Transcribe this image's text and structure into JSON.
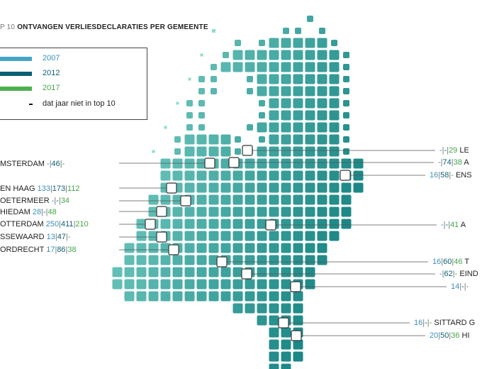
{
  "title": {
    "prefix": "P 10",
    "main": "ONTVANGEN VERLIESDECLARATIES PER GEMEENTE"
  },
  "legend": {
    "items": [
      {
        "label": "2007",
        "color": "#46a3c8"
      },
      {
        "label": "2012",
        "color": "#0b5e74"
      },
      {
        "label": "2017",
        "color": "#4cb052"
      }
    ],
    "not_in_top10": "dat jaar niet in top 10"
  },
  "colors": {
    "year_2007": "#3b8fbd",
    "year_2012": "#0e5f73",
    "year_2017": "#47a64a",
    "map_light": "#7fd6cc",
    "map_dark": "#077a78"
  },
  "chart_data": {
    "type": "table",
    "columns": [
      "2007",
      "2012",
      "2017"
    ],
    "rows": [
      {
        "name": "MSTERDAM",
        "v2007": "-",
        "v2012": "46",
        "v2017": "-",
        "side": "left"
      },
      {
        "name": "EN HAAG",
        "v2007": "133",
        "v2012": "173",
        "v2017": "112",
        "side": "left"
      },
      {
        "name": "OETERMEER",
        "v2007": "-",
        "v2012": "-",
        "v2017": "34",
        "side": "left"
      },
      {
        "name": "HIEDAM",
        "v2007": "28",
        "v2012": "-",
        "v2017": "48",
        "side": "left"
      },
      {
        "name": "OTTERDAM",
        "v2007": "250",
        "v2012": "411",
        "v2017": "210",
        "side": "left"
      },
      {
        "name": "SSEWAARD",
        "v2007": "13",
        "v2012": "47",
        "v2017": "-",
        "side": "left"
      },
      {
        "name": "ORDRECHT",
        "v2007": "17",
        "v2012": "86",
        "v2017": "38",
        "side": "left"
      },
      {
        "name": "LE",
        "v2007": "-",
        "v2012": "-",
        "v2017": "29",
        "side": "right"
      },
      {
        "name": "A",
        "v2007": "-",
        "v2012": "74",
        "v2017": "38",
        "side": "right"
      },
      {
        "name": "ENS",
        "v2007": "16",
        "v2012": "58",
        "v2017": "-",
        "side": "right"
      },
      {
        "name": "A",
        "v2007": "-",
        "v2012": "-",
        "v2017": "41",
        "side": "right"
      },
      {
        "name": "T",
        "v2007": "16",
        "v2012": "60",
        "v2017": "46",
        "side": "right"
      },
      {
        "name": "EIND",
        "v2007": "-",
        "v2012": "62",
        "v2017": "-",
        "side": "right"
      },
      {
        "name": "",
        "v2007": "14",
        "v2012": "-",
        "v2017": "-",
        "side": "right"
      },
      {
        "name": "SITTARD G",
        "v2007": "16",
        "v2012": "-",
        "v2017": "-",
        "side": "right"
      },
      {
        "name": "HI",
        "v2007": "20",
        "v2012": "50",
        "v2017": "36",
        "side": "right"
      }
    ]
  }
}
